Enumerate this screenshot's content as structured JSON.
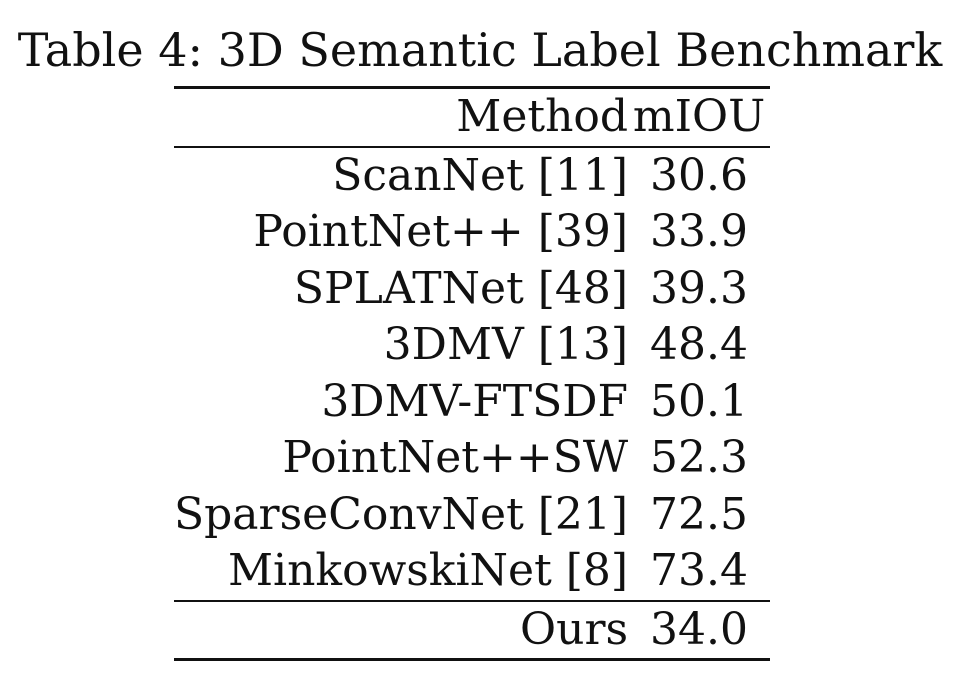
{
  "caption": "Table 4: 3D Semantic Label Benchmark",
  "table": {
    "headers": [
      "Method",
      "mIOU"
    ],
    "rows": [
      {
        "method": "ScanNet [11]",
        "miou": "30.6"
      },
      {
        "method": "PointNet++ [39]",
        "miou": "33.9"
      },
      {
        "method": "SPLATNet [48]",
        "miou": "39.3"
      },
      {
        "method": "3DMV [13]",
        "miou": "48.4"
      },
      {
        "method": "3DMV-FTSDF",
        "miou": "50.1"
      },
      {
        "method": "PointNet++SW",
        "miou": "52.3"
      },
      {
        "method": "SparseConvNet [21]",
        "miou": "72.5"
      },
      {
        "method": "MinkowskiNet [8]",
        "miou": "73.4",
        "bold": true
      }
    ],
    "ours": {
      "method": "Ours",
      "miou": "34.0"
    }
  }
}
